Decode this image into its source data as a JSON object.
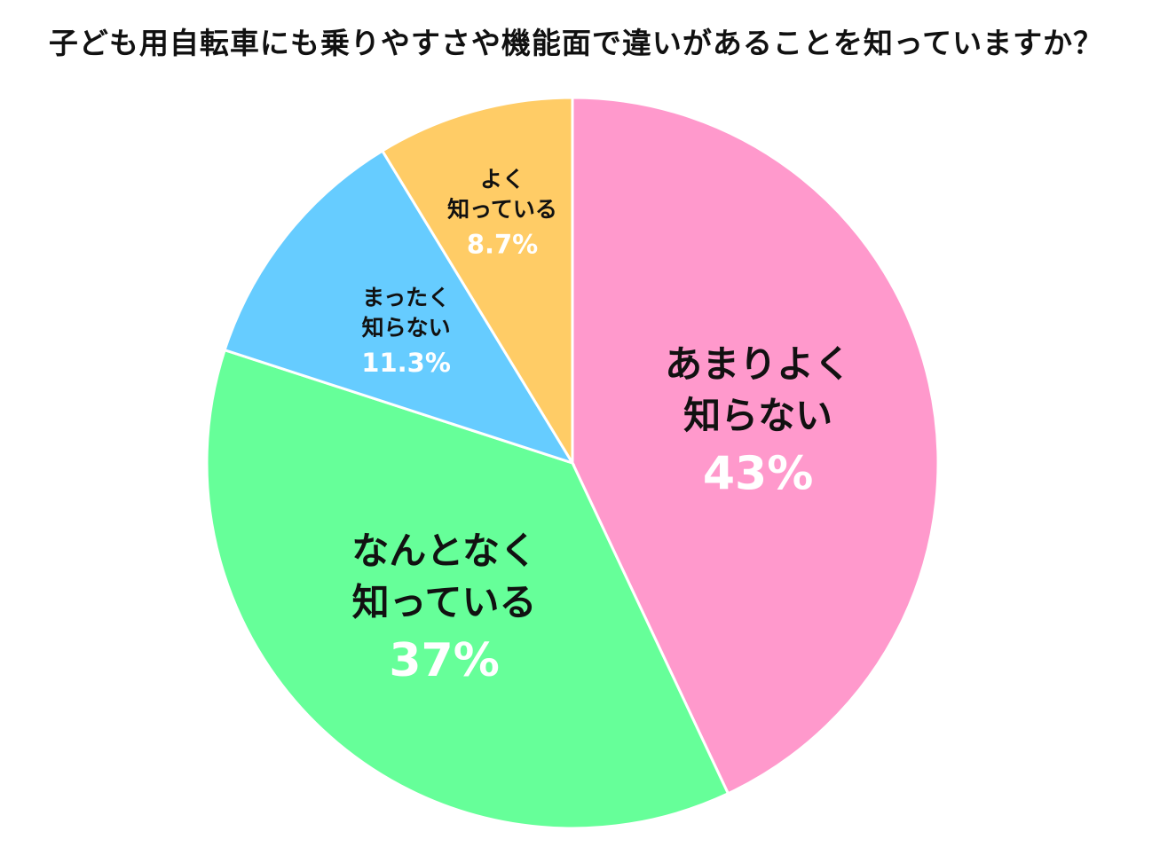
{
  "chart_data": {
    "type": "pie",
    "title": "子ども用自転車にも乗りやすさや機能面で違いがあることを知っていますか？",
    "start_angle_deg": 0,
    "direction": "clockwise",
    "slices": [
      {
        "lines": [
          "あまりよく",
          "知らない"
        ],
        "value": 43,
        "pct_label": "43%",
        "color": "#ff99cc"
      },
      {
        "lines": [
          "なんとなく",
          "知っている"
        ],
        "value": 37,
        "pct_label": "37%",
        "color": "#66ff99"
      },
      {
        "lines": [
          "まったく",
          "知らない"
        ],
        "value": 11.3,
        "pct_label": "11.3%",
        "color": "#66ccff"
      },
      {
        "lines": [
          "よく",
          "知っている"
        ],
        "value": 8.7,
        "pct_label": "8.7%",
        "color": "#ffcc66"
      }
    ]
  }
}
